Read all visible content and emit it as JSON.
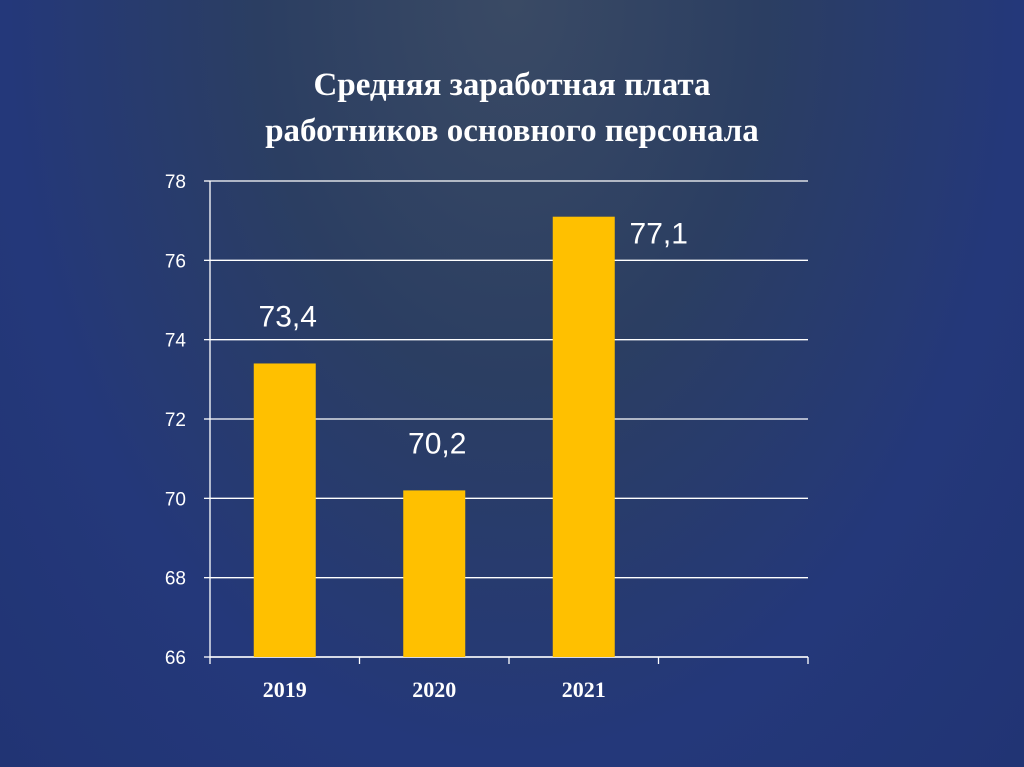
{
  "slide": {
    "title_line1": "Средняя заработная плата",
    "title_line2": "работников основного персонала"
  },
  "chart_data": {
    "type": "bar",
    "title": "Средняя заработная плата работников основного персонала",
    "xlabel": "",
    "ylabel": "",
    "categories": [
      "2019",
      "2020",
      "2021",
      ""
    ],
    "values": [
      73.4,
      70.2,
      77.1,
      null
    ],
    "data_labels": [
      "73,4",
      "70,2",
      "77,1",
      ""
    ],
    "ylim": [
      66,
      78
    ],
    "yticks": [
      66,
      68,
      70,
      72,
      74,
      76,
      78
    ],
    "grid": true,
    "legend": "none",
    "bar_color": "#ffc000",
    "text_color": "#ffffff",
    "grid_color": "#ffffff"
  }
}
